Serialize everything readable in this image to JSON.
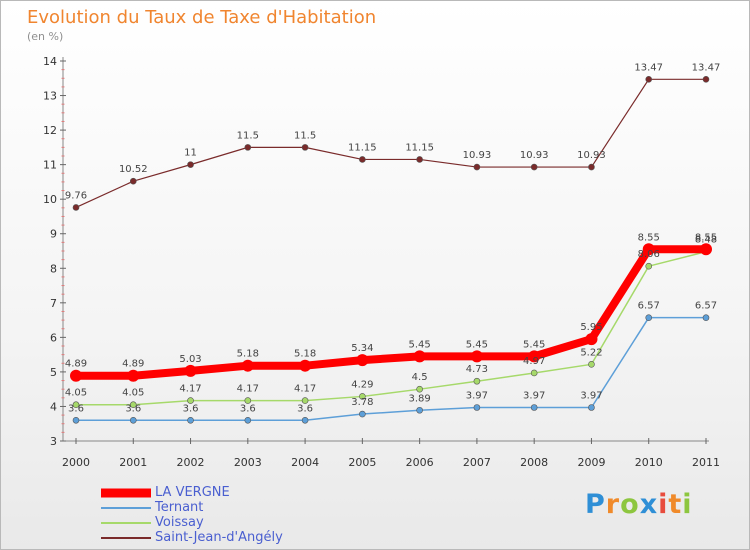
{
  "title": "Evolution du Taux de Taxe d'Habitation",
  "subtitle": "(en %)",
  "logo": {
    "letters": [
      {
        "char": "P",
        "color": "#2f8fd6"
      },
      {
        "char": "r",
        "color": "#f08a2a"
      },
      {
        "char": "o",
        "color": "#8dc63f"
      },
      {
        "char": "x",
        "color": "#2f8fd6"
      },
      {
        "char": "i",
        "color": "#e84c3d"
      },
      {
        "char": "t",
        "color": "#f08a2a"
      },
      {
        "char": "i",
        "color": "#8dc63f"
      }
    ]
  },
  "chart_data": {
    "type": "line",
    "title": "Evolution du Taux de Taxe d'Habitation",
    "subtitle": "(en %)",
    "xlabel": "",
    "ylabel": "(en %)",
    "x": [
      "2000",
      "2001",
      "2002",
      "2003",
      "2004",
      "2005",
      "2006",
      "2007",
      "2008",
      "2009",
      "2010",
      "2011"
    ],
    "ylim": [
      3,
      14
    ],
    "yticks": [
      3,
      4,
      5,
      6,
      7,
      8,
      9,
      10,
      11,
      12,
      13,
      14
    ],
    "grid": false,
    "legend_position": "bottom-left",
    "series": [
      {
        "name": "LA VERGNE",
        "color": "#ff0000",
        "labels": [
          "4.89",
          "4.89",
          "5.03",
          "5.18",
          "5.18",
          "5.34",
          "5.45",
          "5.45",
          "5.45",
          "5.95",
          "8.55",
          "8.55"
        ],
        "values": [
          4.89,
          4.89,
          5.03,
          5.18,
          5.18,
          5.34,
          5.45,
          5.45,
          5.45,
          5.95,
          8.55,
          8.55
        ]
      },
      {
        "name": "Ternant",
        "color": "#5d9fd8",
        "labels": [
          "3.6",
          "3.6",
          "3.6",
          "3.6",
          "3.6",
          "3.78",
          "3.89",
          "3.97",
          "3.97",
          "3.97",
          "6.57",
          "6.57"
        ],
        "values": [
          3.6,
          3.6,
          3.6,
          3.6,
          3.6,
          3.78,
          3.89,
          3.97,
          3.97,
          3.97,
          6.57,
          6.57
        ]
      },
      {
        "name": "Voissay",
        "color": "#a6d96a",
        "labels": [
          "4.05",
          "4.05",
          "4.17",
          "4.17",
          "4.17",
          "4.29",
          "4.5",
          "4.73",
          "4.97",
          "5.22",
          "8.06",
          "8.48"
        ],
        "values": [
          4.05,
          4.05,
          4.17,
          4.17,
          4.17,
          4.29,
          4.5,
          4.73,
          4.97,
          5.22,
          8.06,
          8.48
        ]
      },
      {
        "name": "Saint-Jean-d'Angély",
        "color": "#7a2b2b",
        "labels": [
          "9.76",
          "10.52",
          "11",
          "11.5",
          "11.5",
          "11.15",
          "11.15",
          "10.93",
          "10.93",
          "10.93",
          "13.47",
          "13.47"
        ],
        "values": [
          9.76,
          10.52,
          11,
          11.5,
          11.5,
          11.15,
          11.15,
          10.93,
          10.93,
          10.93,
          13.47,
          13.47
        ]
      }
    ]
  }
}
